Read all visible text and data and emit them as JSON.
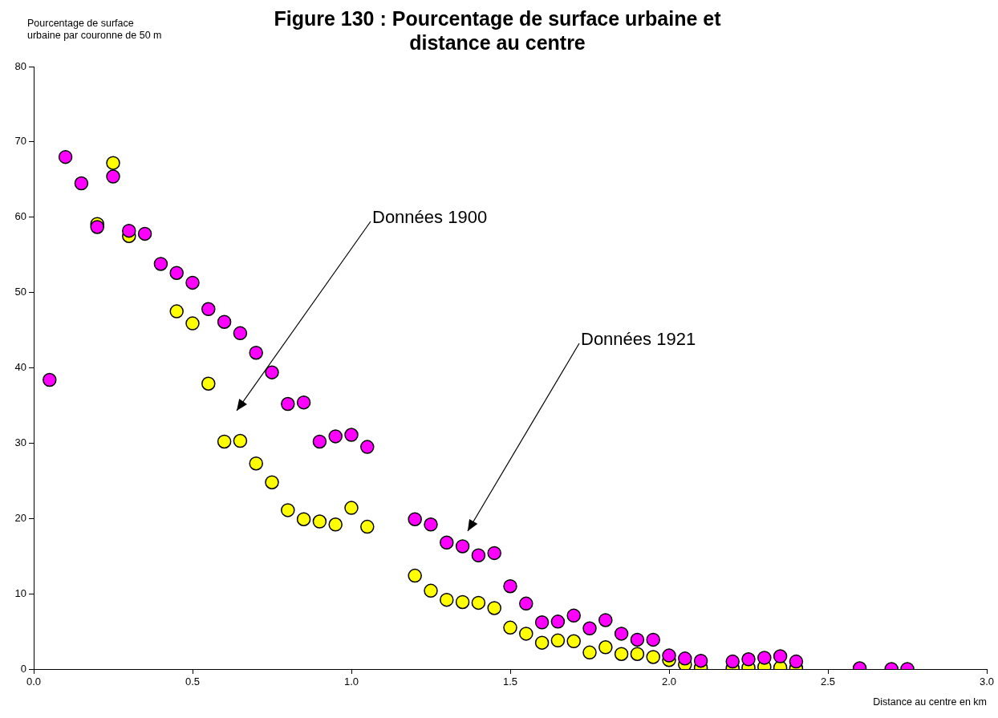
{
  "chart_data": {
    "type": "scatter",
    "title": "Figure 130 : Pourcentage de surface urbaine et distance au centre",
    "xlabel": "Distance au centre en km",
    "ylabel": "Pourcentage de surface urbaine par couronne de 50 m",
    "xlim": [
      0,
      3
    ],
    "xticks": [
      {
        "value": 0,
        "label": "0.0"
      },
      {
        "value": 0.5,
        "label": "0.5"
      },
      {
        "value": 1,
        "label": "1.0"
      },
      {
        "value": 1.5,
        "label": "1.5"
      },
      {
        "value": 2,
        "label": "2.0"
      },
      {
        "value": 2.5,
        "label": "2.5"
      },
      {
        "value": 3,
        "label": "3.0"
      }
    ],
    "ylim": [
      0,
      80
    ],
    "yticks": [
      0,
      10,
      20,
      30,
      40,
      50,
      60,
      70,
      80
    ],
    "marker": "circle",
    "legend": false,
    "annotations": [
      "Données 1900",
      "Données 1921"
    ],
    "series": [
      {
        "color": "#ffff00",
        "x": [
          0.2,
          0.25,
          0.3,
          0.45,
          0.5,
          0.55,
          0.6,
          0.65,
          0.7,
          0.75,
          0.8,
          0.85,
          0.9,
          0.95,
          1.0,
          1.05,
          1.2,
          1.25,
          1.3,
          1.35,
          1.4,
          1.45,
          1.5,
          1.55,
          1.6,
          1.65,
          1.7,
          1.75,
          1.8,
          1.85,
          1.9,
          1.95,
          2.0,
          2.05,
          2.1,
          2.2,
          2.25,
          2.3,
          2.35,
          2.4
        ],
        "values": [
          59.1,
          67.2,
          57.5,
          47.5,
          45.9,
          37.9,
          30.2,
          30.3,
          27.3,
          24.8,
          21.1,
          19.9,
          19.6,
          19.2,
          21.4,
          18.9,
          12.4,
          10.4,
          9.2,
          8.9,
          8.8,
          8.1,
          5.5,
          4.7,
          3.5,
          3.8,
          3.7,
          2.2,
          2.9,
          2.0,
          2.0,
          1.6,
          1.2,
          0.6,
          0.2,
          0.1,
          0.2,
          0.3,
          0.2,
          0.1
        ]
      },
      {
        "color": "#ff00ff",
        "x": [
          0.05,
          0.1,
          0.15,
          0.2,
          0.25,
          0.3,
          0.35,
          0.4,
          0.45,
          0.5,
          0.55,
          0.6,
          0.65,
          0.7,
          0.75,
          0.8,
          0.85,
          0.9,
          0.95,
          1.0,
          1.05,
          1.2,
          1.25,
          1.3,
          1.35,
          1.4,
          1.45,
          1.5,
          1.55,
          1.6,
          1.65,
          1.7,
          1.75,
          1.8,
          1.85,
          1.9,
          1.95,
          2.0,
          2.05,
          2.1,
          2.2,
          2.25,
          2.3,
          2.35,
          2.4,
          2.6,
          2.7,
          2.75
        ],
        "values": [
          38.4,
          68.0,
          64.5,
          58.7,
          65.4,
          58.2,
          57.8,
          53.8,
          52.6,
          51.3,
          47.8,
          46.1,
          44.6,
          42.0,
          39.4,
          35.2,
          35.4,
          30.2,
          30.9,
          31.1,
          29.5,
          19.9,
          19.2,
          16.8,
          16.3,
          15.1,
          15.4,
          11.0,
          8.7,
          6.2,
          6.3,
          7.1,
          5.4,
          6.5,
          4.7,
          3.9,
          3.9,
          1.8,
          1.4,
          1.1,
          1.0,
          1.3,
          1.5,
          1.7,
          1.0,
          0.1,
          0.0,
          0.0
        ]
      }
    ]
  }
}
